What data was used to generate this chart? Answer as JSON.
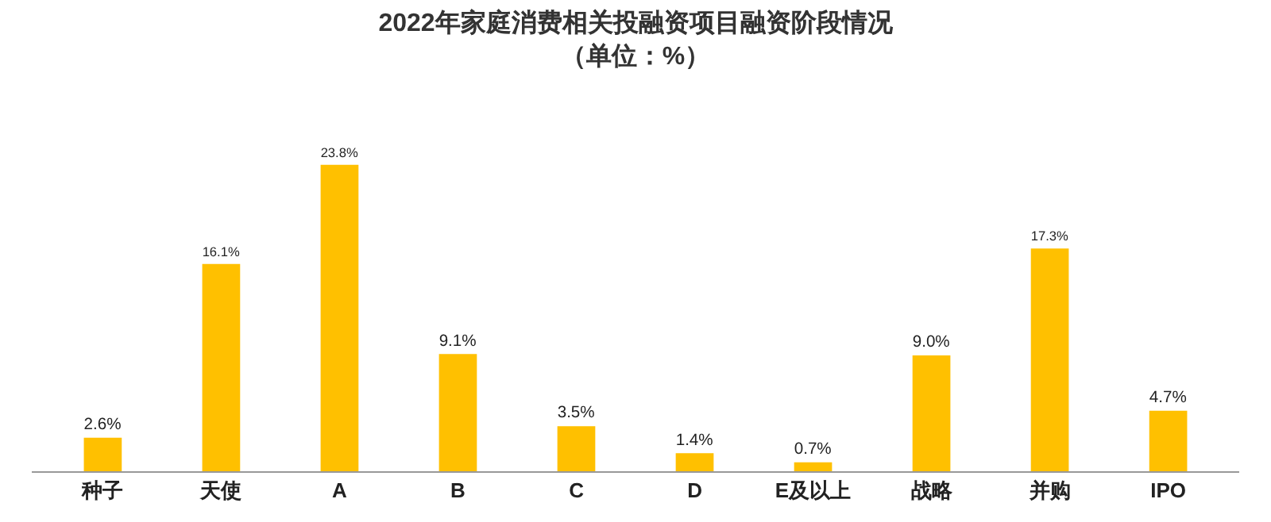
{
  "chart_data": {
    "type": "bar",
    "title": "2022年家庭消费相关投融资项目融资阶段情况",
    "subtitle": "（单位：%）",
    "categories": [
      "种子",
      "天使",
      "A",
      "B",
      "C",
      "D",
      "E及以上",
      "战略",
      "并购",
      "IPO"
    ],
    "values": [
      2.6,
      16.1,
      23.8,
      9.1,
      3.5,
      1.4,
      0.7,
      9.0,
      17.3,
      4.7
    ],
    "value_labels": [
      "2.6%",
      "16.1%",
      "23.8%",
      "9.1%",
      "3.5%",
      "1.4%",
      "0.7%",
      "9.0%",
      "17.3%",
      "4.7%"
    ],
    "color": "#ffc000",
    "grid": false,
    "legend": false
  }
}
